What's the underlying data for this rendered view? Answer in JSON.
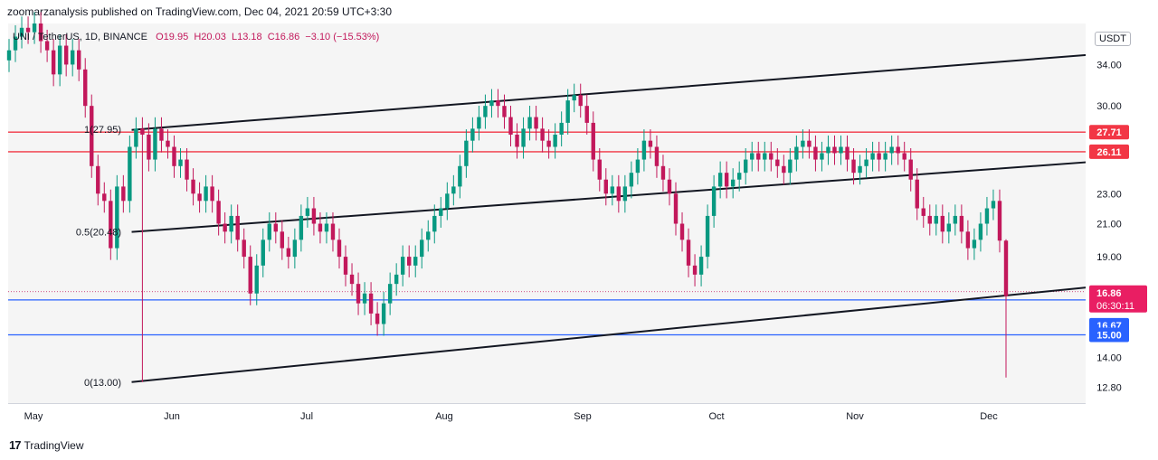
{
  "header": {
    "publisher_line": "zoomarzanalysis published on TradingView.com, Dec 04, 2021 20:59 UTC+3:30"
  },
  "legend": {
    "symbol": "UNI / TetherUS, 1D, BINANCE",
    "open": "O19.95",
    "high": "H20.03",
    "low": "L13.18",
    "close": "C16.86",
    "change": "−3.10 (−15.53%)"
  },
  "currency_button": "USDT",
  "footer": {
    "brand": "TradingView"
  },
  "chart_data": {
    "type": "candlestick",
    "x": [
      "May",
      "Jun",
      "Jul",
      "Aug",
      "Sep",
      "Oct",
      "Nov",
      "Dec"
    ],
    "y_ticks": [
      34.0,
      30.0,
      23.0,
      21.0,
      19.0,
      14.0,
      12.8
    ],
    "y_axis_scale": "log",
    "ylim": [
      12.2,
      38.5
    ],
    "current_price": {
      "value": 16.86,
      "label": "16.86",
      "countdown": "06:30:11"
    },
    "price_tags": [
      {
        "label": "27.71",
        "color": "#f23645"
      },
      {
        "label": "26.11",
        "color": "#f23645"
      },
      {
        "label": "16.67",
        "color": "#2962ff"
      },
      {
        "label": "15.00",
        "color": "#2962ff"
      }
    ],
    "horizontal_levels": [
      {
        "value": 27.71,
        "color": "#f23645"
      },
      {
        "value": 26.11,
        "color": "#f23645"
      },
      {
        "value": 16.67,
        "color": "#2962ff"
      },
      {
        "value": 15.0,
        "color": "#2962ff"
      }
    ],
    "fib_labels": [
      "1(27.95)",
      "0.5(20.48)",
      "0(13.00)"
    ],
    "channel_lines": [
      {
        "name": "upper",
        "start": {
          "date": "May 23",
          "value": 27.9
        },
        "end": {
          "date": "Dec 31",
          "value": 35.3
        }
      },
      {
        "name": "middle",
        "start": {
          "date": "May 23",
          "value": 20.48
        },
        "end": {
          "date": "Dec 31",
          "value": 25.5
        }
      },
      {
        "name": "lower",
        "start": {
          "date": "May 23",
          "value": 13.0
        },
        "end": {
          "date": "Dec 31",
          "value": 17.5
        }
      }
    ],
    "colors": {
      "up": "#089981",
      "down": "#c2185b",
      "line": "#131722"
    },
    "closes": [
      35.5,
      37.0,
      38.0,
      37.5,
      38.5,
      36.5,
      35.5,
      33.0,
      36.0,
      34.0,
      35.5,
      33.5,
      30.0,
      25.0,
      23.0,
      22.5,
      19.5,
      23.5,
      22.5,
      26.5,
      28.0,
      27.5,
      25.5,
      28.0,
      27.0,
      26.5,
      25.0,
      25.5,
      24.0,
      23.0,
      22.5,
      23.5,
      22.5,
      21.0,
      20.5,
      21.5,
      20.0,
      19.0,
      17.0,
      18.5,
      20.0,
      21.0,
      20.5,
      19.5,
      19.0,
      20.0,
      21.5,
      22.0,
      21.0,
      20.5,
      21.0,
      20.0,
      19.0,
      18.0,
      17.5,
      16.5,
      17.0,
      16.0,
      15.5,
      16.5,
      17.5,
      18.0,
      19.0,
      18.5,
      19.0,
      20.0,
      20.5,
      21.5,
      22.0,
      23.0,
      23.5,
      25.0,
      27.0,
      28.0,
      29.0,
      30.0,
      30.5,
      30.0,
      29.0,
      27.5,
      26.5,
      28.0,
      29.0,
      28.0,
      27.0,
      26.5,
      27.5,
      28.5,
      30.5,
      31.0,
      30.0,
      28.5,
      25.5,
      24.0,
      23.0,
      23.5,
      22.5,
      23.5,
      24.5,
      25.5,
      27.0,
      26.5,
      25.0,
      24.0,
      23.0,
      21.0,
      20.0,
      18.5,
      18.0,
      19.0,
      21.5,
      23.5,
      24.5,
      23.5,
      24.0,
      24.5,
      25.5,
      26.0,
      25.5,
      26.0,
      25.5,
      25.0,
      24.5,
      25.5,
      26.5,
      27.0,
      26.5,
      25.5,
      26.0,
      26.5,
      26.0,
      26.5,
      25.5,
      24.5,
      25.0,
      25.5,
      26.0,
      25.5,
      26.0,
      26.5,
      26.0,
      25.5,
      24.0,
      22.0,
      21.5,
      21.0,
      21.5,
      20.5,
      21.0,
      21.5,
      20.5,
      19.5,
      20.0,
      21.0,
      22.0,
      22.5,
      19.95,
      16.86
    ]
  }
}
